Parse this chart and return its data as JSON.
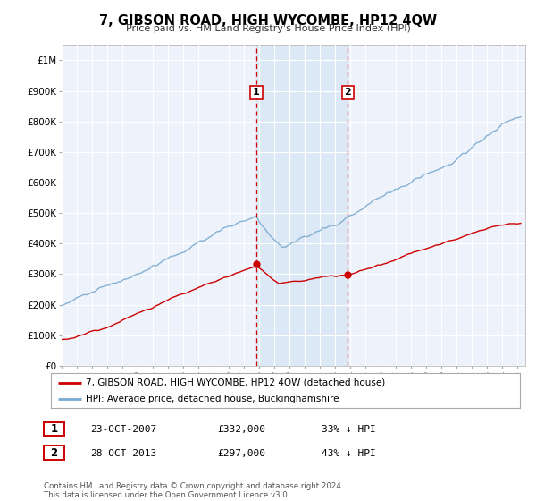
{
  "title": "7, GIBSON ROAD, HIGH WYCOMBE, HP12 4QW",
  "subtitle": "Price paid vs. HM Land Registry's House Price Index (HPI)",
  "background_color": "#ffffff",
  "plot_bg_color": "#eef2fa",
  "grid_color": "#ffffff",
  "hpi_color": "#7aaad0",
  "price_color": "#cc0000",
  "sale1_date": 2007.81,
  "sale1_price": 332000,
  "sale1_label": "1",
  "sale1_hpi_pct": "33% ↓ HPI",
  "sale1_date_str": "23-OCT-2007",
  "sale2_date": 2013.82,
  "sale2_price": 297000,
  "sale2_label": "2",
  "sale2_hpi_pct": "43% ↓ HPI",
  "sale2_date_str": "28-OCT-2013",
  "legend_address": "7, GIBSON ROAD, HIGH WYCOMBE, HP12 4QW (detached house)",
  "legend_hpi": "HPI: Average price, detached house, Buckinghamshire",
  "footer1": "Contains HM Land Registry data © Crown copyright and database right 2024.",
  "footer2": "This data is licensed under the Open Government Licence v3.0.",
  "ylim_max": 1050000,
  "xlim_min": 1995.0,
  "xlim_max": 2025.5,
  "span_color": "#dce8f5",
  "vline_color": "#cc0000",
  "label_box_color": "#cc0000"
}
